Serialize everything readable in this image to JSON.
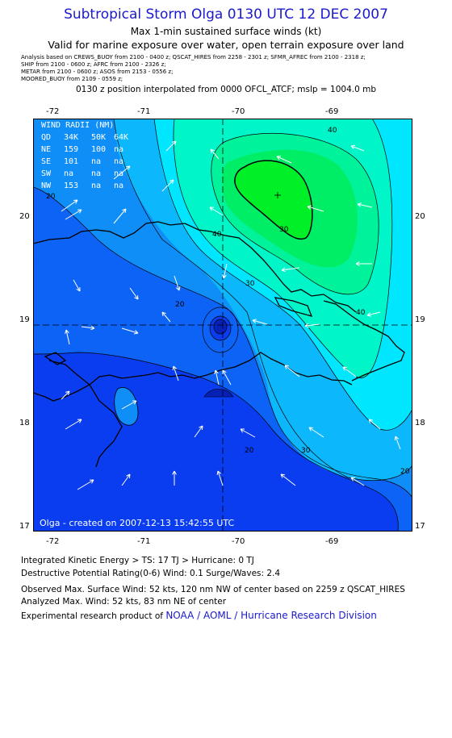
{
  "header": {
    "title": "Subtropical Storm Olga 0130 UTC 12 DEC 2007",
    "subtitle1": "Max 1-min sustained surface winds (kt)",
    "subtitle2": "Valid for marine exposure over water, open terrain exposure over land",
    "sources": [
      "Analysis based on  CREWS_BUOY from 2100 - 0400 z;  QSCAT_HIRES from 2258 - 2301 z;  SFMR_AFREC from 2100 - 2318 z;",
      "SHIP from  2100 - 0600 z;  AFRC from 2100 - 2326 z;",
      "METAR from  2100 - 0600 z;  ASOS from 2153 - 0556 z;",
      "MOORED_BUOY from  2109 - 0559 z;"
    ],
    "position_line": "0130 z position interpolated from 0000 OFCL_ATCF; mslp = 1004.0 mb"
  },
  "axes": {
    "top_lon": [
      "-72",
      "-71",
      "-70",
      "-69"
    ],
    "bottom_lon": [
      "-72",
      "-71",
      "-70",
      "-69"
    ],
    "left_lat": [
      "20",
      "19",
      "18",
      "17"
    ],
    "right_lat": [
      "20",
      "19",
      "18",
      "17"
    ]
  },
  "map": {
    "lon_range": [
      -72.25,
      -68.25
    ],
    "lat_range": [
      16.95,
      20.95
    ],
    "center": {
      "lon": -70.0,
      "lat": 18.95
    },
    "contour_labels": [
      "20",
      "20",
      "20",
      "20",
      "30",
      "30",
      "30",
      "40",
      "40",
      "40"
    ],
    "wind_radii": {
      "heading": "WIND RADII (NM)",
      "rows": [
        [
          "QD",
          "34K",
          "50K",
          "64K"
        ],
        [
          "NE",
          "159",
          "100",
          "na"
        ],
        [
          "SE",
          "101",
          "na",
          "na"
        ],
        [
          "SW",
          "na",
          "na",
          "na"
        ],
        [
          "NW",
          "153",
          "na",
          "na"
        ]
      ]
    },
    "credit": "Olga - created on 2007-12-13 15:42:55 UTC",
    "colors": {
      "deep_blue": "#0a3cf0",
      "blue": "#0d63f5",
      "azure": "#0f8ef8",
      "sky": "#0db7fb",
      "cyan": "#00e6ff",
      "aqua": "#00f5c8",
      "seafoam": "#00f39a",
      "spring": "#00ee66",
      "green": "#00f028"
    }
  },
  "footer": {
    "line1": "Integrated Kinetic Energy > TS: 17 TJ   > Hurricane: 0 TJ",
    "line2": "Destructive Potential Rating(0-6)   Wind: 0.1 Surge/Waves: 2.4",
    "line3": "Observed Max. Surface Wind: 52 kts, 120 nm NW of center based on 2259 z QSCAT_HIRES",
    "line4": "Analyzed Max. Wind: 52 kts, 83 nm NE of center",
    "line5_prefix": "Experimental research product of ",
    "line5_link": "NOAA / AOML / Hurricane Research Division"
  }
}
